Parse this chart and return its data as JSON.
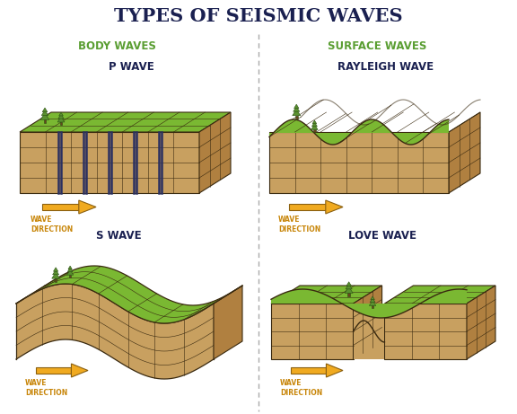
{
  "title": "TYPES OF SEISMIC WAVES",
  "title_color": "#1a2050",
  "title_fontsize": 15,
  "bg_color": "#ffffff",
  "body_waves_label": "BODY WAVES",
  "surface_waves_label": "SURFACE WAVES",
  "section_label_color": "#5a9e32",
  "section_label_fontsize": 8.5,
  "wave_labels": [
    "P WAVE",
    "RAYLEIGH WAVE",
    "S WAVE",
    "LOVE WAVE"
  ],
  "wave_label_color": "#1a2050",
  "wave_label_fontsize": 8.5,
  "direction_label": "WAVE\nDIRECTION",
  "direction_color": "#c8860a",
  "direction_fontsize": 5.5,
  "earth_face_color": "#c8a060",
  "earth_edge_color": "#3a2a10",
  "earth_top_color": "#7ab832",
  "earth_grid_color": "#3a2a10",
  "earth_side_color": "#b08040",
  "arrow_color": "#f0aa20",
  "arrow_edge_color": "#8b6010",
  "p_wave_line_color": "#2a3060",
  "divider_color": "#aaaaaa",
  "tree_trunk_color": "#6b4020",
  "tree_foliage_color": "#5a9030",
  "tree_edge_color": "#2a5010"
}
